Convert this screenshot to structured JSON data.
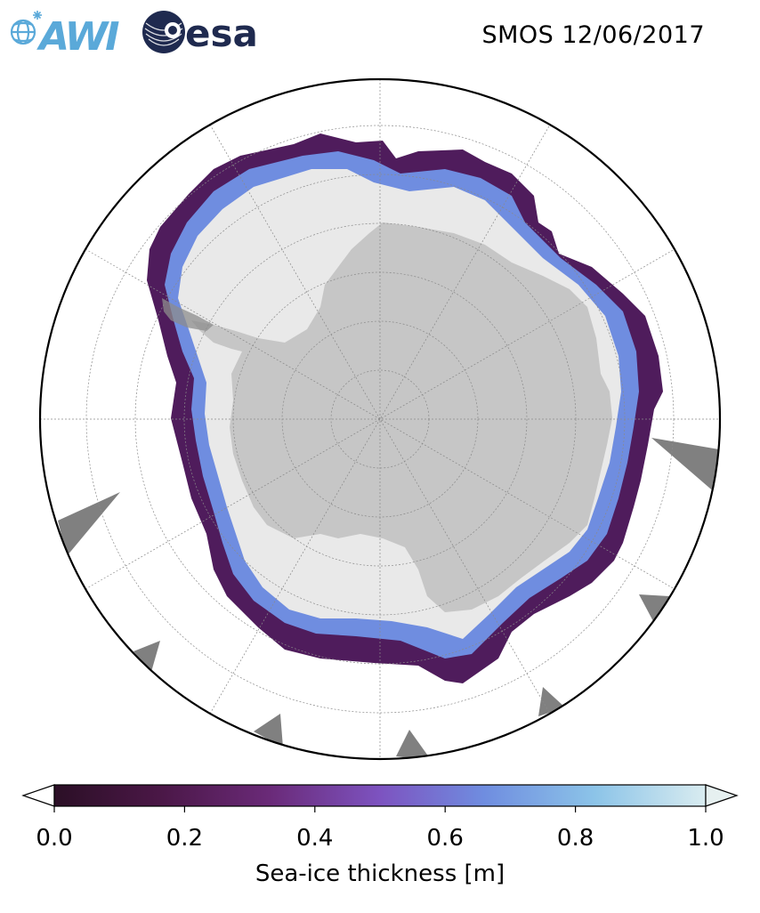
{
  "header": {
    "logo_awi_text": "AWI",
    "logo_esa_text": "esa",
    "title": "SMOS 12/06/2017"
  },
  "map": {
    "projection": "south polar stereographic",
    "colors": {
      "land": "#c6c6c6",
      "ice_shelf_edge": "#7f7f7f",
      "no_data": "#808080",
      "ocean": "#ffffff",
      "graticule": "#8a8a8a",
      "boundary": "#000000"
    }
  },
  "colorbar": {
    "label": "Sea-ice thickness [m]",
    "min": 0.0,
    "max": 1.0,
    "extend": "both",
    "ticks": [
      {
        "value": 0.0,
        "label": "0.0"
      },
      {
        "value": 0.2,
        "label": "0.2"
      },
      {
        "value": 0.4,
        "label": "0.4"
      },
      {
        "value": 0.6,
        "label": "0.6"
      },
      {
        "value": 0.8,
        "label": "0.8"
      },
      {
        "value": 1.0,
        "label": "1.0"
      }
    ],
    "colormap": [
      "#2b0f26",
      "#4a1746",
      "#6a2a78",
      "#7d53c0",
      "#6f8de0",
      "#8cc4e8",
      "#d9ecf0"
    ],
    "under_color": "#ffffff",
    "over_color": "#e6f0f0"
  }
}
